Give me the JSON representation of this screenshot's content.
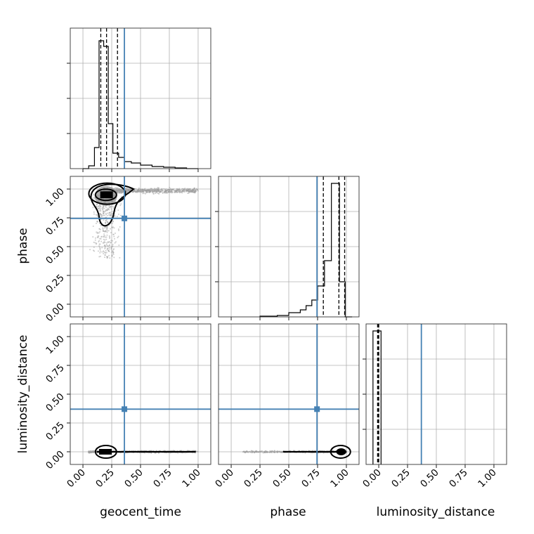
{
  "chart_data": {
    "type": "corner",
    "parameters": [
      "geocent_time",
      "phase",
      "luminosity_distance"
    ],
    "axis_labels": {
      "geocent_time": "geocent_time",
      "phase": "phase",
      "luminosity_distance": "luminosity_distance"
    },
    "ticks": {
      "geocent_time": [
        "0.00",
        "0.25",
        "0.50",
        "0.75",
        "1.00"
      ],
      "phase": [
        "0.00",
        "0.25",
        "0.50",
        "0.75",
        "1.00"
      ],
      "luminosity_distance": [
        "0.00",
        "0.25",
        "0.50",
        "0.75",
        "1.00"
      ]
    },
    "ranges": {
      "geocent_time": [
        -0.11,
        1.11
      ],
      "phase": [
        -0.11,
        1.11
      ],
      "luminosity_distance": [
        -0.11,
        1.11
      ]
    },
    "truths": {
      "geocent_time": 0.36,
      "phase": 0.745,
      "luminosity_distance": 0.37
    },
    "quantiles": {
      "geocent_time": [
        0.155,
        0.205,
        0.3
      ],
      "phase": [
        0.8,
        0.935,
        0.985
      ],
      "luminosity_distance": [
        -0.01,
        -0.005,
        0.0
      ]
    },
    "histograms": {
      "geocent_time": {
        "edges": [
          0.0,
          0.05,
          0.1,
          0.14,
          0.18,
          0.22,
          0.26,
          0.31,
          0.36,
          0.42,
          0.5,
          0.6,
          0.7,
          0.8,
          0.9,
          1.0
        ],
        "counts": [
          0.0,
          0.02,
          0.15,
          0.91,
          0.87,
          0.32,
          0.11,
          0.08,
          0.05,
          0.04,
          0.025,
          0.015,
          0.01,
          0.005,
          0.0
        ]
      },
      "phase": {
        "edges": [
          0.25,
          0.4,
          0.5,
          0.6,
          0.65,
          0.7,
          0.75,
          0.81,
          0.87,
          0.94,
          0.99,
          1.05
        ],
        "counts": [
          0.005,
          0.01,
          0.03,
          0.05,
          0.08,
          0.12,
          0.22,
          0.4,
          0.95,
          0.25,
          0.0
        ]
      },
      "luminosity_distance": {
        "edges": [
          -0.05,
          0.02
        ],
        "counts": [
          0.95
        ]
      }
    },
    "grid": true,
    "truth_color": "#4682b4",
    "contour_color": "#000000",
    "scatter_color": "#9e9e9e"
  }
}
